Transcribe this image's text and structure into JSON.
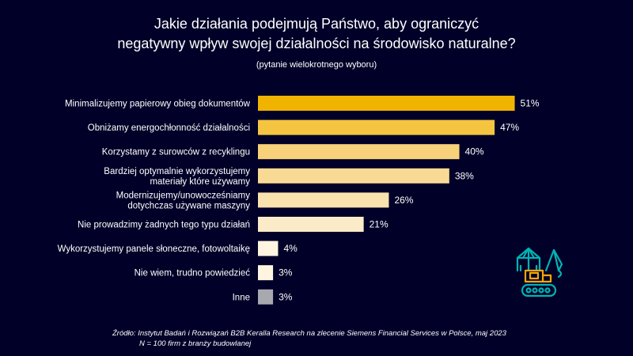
{
  "title": {
    "line1": "Jakie działania podejmują Państwo, aby ograniczyć",
    "line2": "negatywny wpływ swojej działalności na środowisko naturalne?"
  },
  "subtitle": "(pytanie wielokrotnego wyboru)",
  "source": {
    "line1": "Źródło: Instytut Badań i Rozwiązań B2B Keralla Research na zlecenie Siemens Financial Services w Polsce, maj 2023",
    "line2": "N = 100 firm z branży budowlanej"
  },
  "icon_name": "excavator-crane-icon",
  "colors": {
    "background": "#000028",
    "icon_teal": "#00B3B3",
    "icon_orange": "#F5A800"
  },
  "chart_data": {
    "type": "bar",
    "orientation": "horizontal",
    "categories": [
      [
        "Minimalizujemy papierowy obieg dokumentów"
      ],
      [
        "Obniżamy energochłonność działalności"
      ],
      [
        "Korzystamy z surowców z recyklingu"
      ],
      [
        "Bardziej optymalnie wykorzystujemy",
        "materiały które używamy"
      ],
      [
        "Modernizujemy/unowocześniamy",
        "dotychczas używane maszyny"
      ],
      [
        "Nie prowadzimy żadnych tego typu działań"
      ],
      [
        "Wykorzystujemy panele słoneczne, fotowoltaikę"
      ],
      [
        "Nie wiem, trudno powiedzieć"
      ],
      [
        "Inne"
      ]
    ],
    "values": [
      51,
      47,
      40,
      38,
      26,
      21,
      4,
      3,
      3
    ],
    "value_labels": [
      "51%",
      "47%",
      "40%",
      "38%",
      "26%",
      "21%",
      "4%",
      "3%",
      "3%"
    ],
    "unit": "%",
    "xlim": [
      0,
      55
    ],
    "bar_colors": [
      "#F0B400",
      "#F5C542",
      "#F8D27A",
      "#F9DA94",
      "#FAE2AE",
      "#FCEBC8",
      "#FEF5E0",
      "#FEF5E0",
      "#A8A8AF"
    ],
    "grid": false,
    "legend": "none"
  }
}
